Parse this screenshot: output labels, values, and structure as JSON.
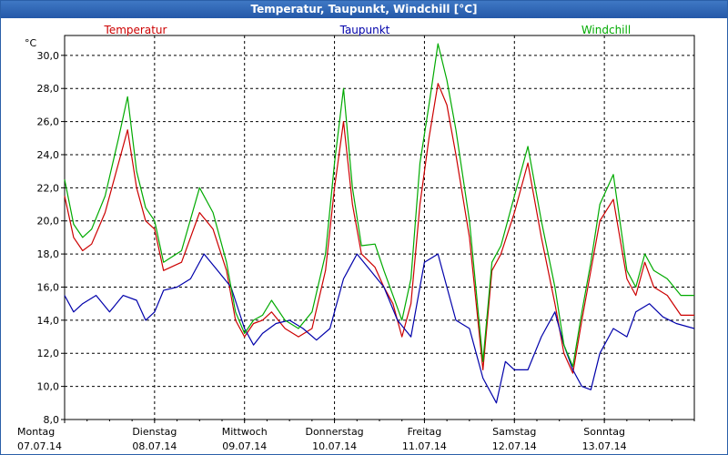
{
  "window": {
    "title": "Temperatur, Taupunkt, Windchill [°C]"
  },
  "chart_data": {
    "type": "line",
    "title": "Temperatur, Taupunkt, Windchill [°C]",
    "unit_label": "°C",
    "ylim": [
      8,
      31.2
    ],
    "y_ticks": [
      "30,0",
      "28,0",
      "26,0",
      "24,0",
      "22,0",
      "20,0",
      "18,0",
      "16,0",
      "14,0",
      "12,0",
      "10,0",
      "8,0"
    ],
    "x_ticks": [
      {
        "day": "Montag",
        "date": "07.07.14"
      },
      {
        "day": "Dienstag",
        "date": "08.07.14"
      },
      {
        "day": "Mittwoch",
        "date": "09.07.14"
      },
      {
        "day": "Donnerstag",
        "date": "10.07.14"
      },
      {
        "day": "Freitag",
        "date": "11.07.14"
      },
      {
        "day": "Samstag",
        "date": "12.07.14"
      },
      {
        "day": "Sonntag",
        "date": "13.07.14"
      }
    ],
    "xlim_days": [
      0,
      7
    ],
    "grid": true,
    "legend_position": "top",
    "series": [
      {
        "name": "Temperatur",
        "color": "#cc0000",
        "x": [
          0,
          0.1,
          0.2,
          0.3,
          0.45,
          0.6,
          0.7,
          0.8,
          0.9,
          1.0,
          1.1,
          1.3,
          1.5,
          1.65,
          1.8,
          1.9,
          2.0,
          2.1,
          2.2,
          2.3,
          2.45,
          2.6,
          2.75,
          2.9,
          3.0,
          3.1,
          3.2,
          3.3,
          3.45,
          3.55,
          3.65,
          3.75,
          3.85,
          3.95,
          4.05,
          4.15,
          4.25,
          4.35,
          4.5,
          4.65,
          4.75,
          4.85,
          5.0,
          5.15,
          5.3,
          5.45,
          5.55,
          5.65,
          5.75,
          5.85,
          5.95,
          6.1,
          6.25,
          6.35,
          6.45,
          6.55,
          6.7,
          6.85,
          7.0
        ],
        "values": [
          21.5,
          19.0,
          18.2,
          18.6,
          20.5,
          23.5,
          25.5,
          22.0,
          20.0,
          19.5,
          17.0,
          17.5,
          20.5,
          19.5,
          17.0,
          14.0,
          13.0,
          13.8,
          14.0,
          14.5,
          13.5,
          13.0,
          13.5,
          17.0,
          22.0,
          26.0,
          21.0,
          18.0,
          17.2,
          16.0,
          15.0,
          13.0,
          15.0,
          21.0,
          25.0,
          28.3,
          27.0,
          24.0,
          19.0,
          11.0,
          17.0,
          18.0,
          20.5,
          23.5,
          19.0,
          15.0,
          12.0,
          10.8,
          14.0,
          17.0,
          20.0,
          21.3,
          16.5,
          15.5,
          17.5,
          16.0,
          15.5,
          14.3,
          14.3
        ]
      },
      {
        "name": "Taupunkt",
        "color": "#0000aa",
        "x": [
          0,
          0.1,
          0.2,
          0.35,
          0.5,
          0.65,
          0.8,
          0.9,
          1.0,
          1.1,
          1.25,
          1.4,
          1.55,
          1.7,
          1.85,
          2.0,
          2.1,
          2.2,
          2.35,
          2.5,
          2.65,
          2.8,
          2.95,
          3.1,
          3.25,
          3.4,
          3.55,
          3.7,
          3.85,
          4.0,
          4.15,
          4.25,
          4.35,
          4.5,
          4.65,
          4.8,
          4.9,
          5.0,
          5.15,
          5.3,
          5.45,
          5.55,
          5.65,
          5.75,
          5.85,
          5.95,
          6.1,
          6.25,
          6.35,
          6.5,
          6.65,
          6.8,
          7.0
        ],
        "values": [
          15.5,
          14.5,
          15.0,
          15.5,
          14.5,
          15.5,
          15.2,
          14.0,
          14.5,
          15.8,
          16.0,
          16.5,
          18.0,
          17.0,
          16.0,
          13.5,
          12.5,
          13.2,
          13.8,
          14.0,
          13.5,
          12.8,
          13.5,
          16.5,
          18.0,
          17.0,
          16.0,
          14.0,
          13.0,
          17.5,
          18.0,
          16.0,
          14.0,
          13.5,
          10.5,
          9.0,
          11.5,
          11.0,
          11.0,
          13.0,
          14.5,
          12.5,
          11.0,
          10.0,
          9.8,
          12.0,
          13.5,
          13.0,
          14.5,
          15.0,
          14.2,
          13.8,
          13.5
        ]
      },
      {
        "name": "Windchill",
        "color": "#00aa00",
        "x": [
          0,
          0.1,
          0.2,
          0.3,
          0.45,
          0.6,
          0.7,
          0.8,
          0.9,
          1.0,
          1.1,
          1.3,
          1.5,
          1.65,
          1.8,
          1.9,
          2.0,
          2.1,
          2.2,
          2.3,
          2.45,
          2.6,
          2.75,
          2.9,
          3.0,
          3.1,
          3.2,
          3.3,
          3.45,
          3.55,
          3.65,
          3.75,
          3.85,
          3.95,
          4.05,
          4.15,
          4.25,
          4.35,
          4.5,
          4.65,
          4.75,
          4.85,
          5.0,
          5.15,
          5.3,
          5.45,
          5.55,
          5.65,
          5.75,
          5.85,
          5.95,
          6.1,
          6.25,
          6.35,
          6.45,
          6.55,
          6.7,
          6.85,
          7.0
        ],
        "values": [
          22.5,
          19.8,
          19.0,
          19.5,
          21.5,
          25.0,
          27.5,
          23.0,
          20.8,
          20.0,
          17.5,
          18.2,
          22.0,
          20.5,
          17.5,
          14.5,
          13.2,
          14.0,
          14.3,
          15.2,
          14.0,
          13.5,
          14.5,
          18.0,
          23.5,
          28.0,
          22.0,
          18.5,
          18.6,
          17.0,
          15.5,
          14.0,
          16.5,
          23.5,
          27.0,
          30.7,
          28.5,
          25.5,
          20.0,
          11.5,
          17.5,
          18.5,
          21.5,
          24.5,
          20.0,
          16.0,
          12.5,
          11.2,
          14.5,
          17.5,
          21.0,
          22.8,
          17.0,
          16.0,
          18.0,
          17.0,
          16.5,
          15.5,
          15.5
        ]
      }
    ]
  }
}
